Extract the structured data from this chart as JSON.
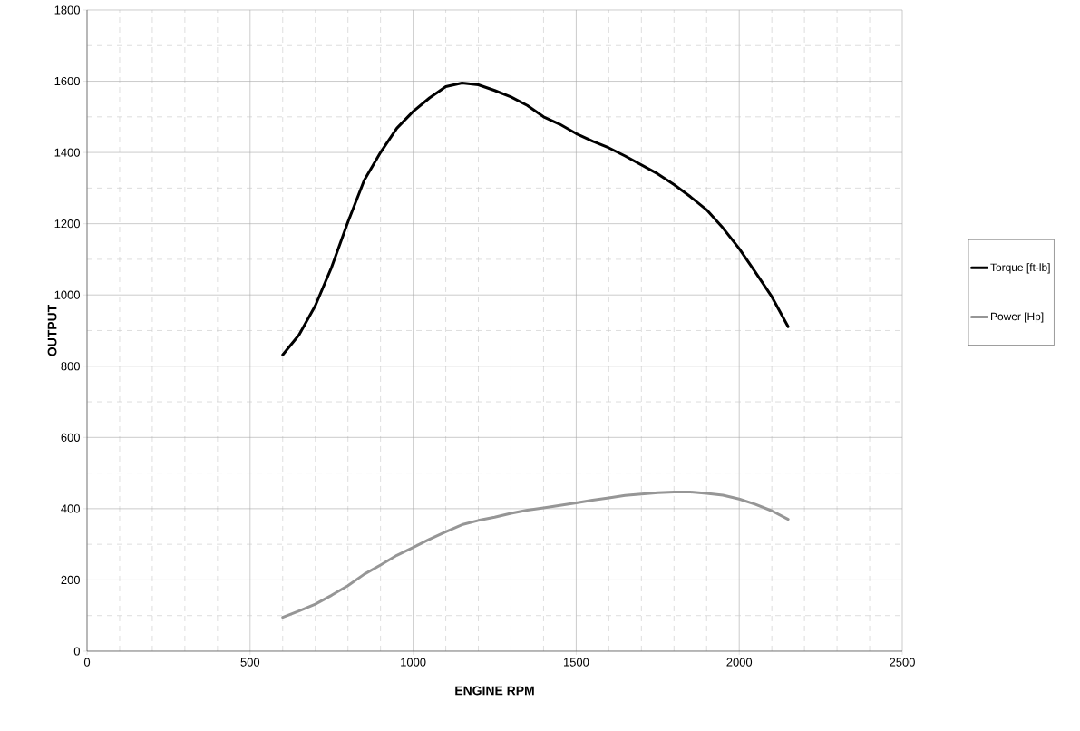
{
  "chart_data": {
    "type": "line",
    "xlabel": "ENGINE RPM",
    "ylabel": "OUTPUT",
    "x": [
      600,
      650,
      700,
      750,
      800,
      850,
      900,
      950,
      1000,
      1050,
      1100,
      1150,
      1200,
      1250,
      1300,
      1350,
      1400,
      1450,
      1500,
      1550,
      1600,
      1650,
      1700,
      1750,
      1800,
      1850,
      1900,
      1950,
      2000,
      2050,
      2100,
      2150
    ],
    "series": [
      {
        "name": "Torque [ft-lb]",
        "color": "#000000",
        "values": [
          832,
          888,
          970,
          1078,
          1205,
          1322,
          1400,
          1468,
          1515,
          1553,
          1585,
          1595,
          1590,
          1574,
          1556,
          1532,
          1500,
          1479,
          1453,
          1432,
          1413,
          1390,
          1365,
          1340,
          1310,
          1276,
          1239,
          1188,
          1130,
          1063,
          995,
          911
        ]
      },
      {
        "name": "Power [Hp]",
        "color": "#969696",
        "values": [
          95,
          113,
          132,
          157,
          184,
          216,
          242,
          269,
          291,
          314,
          335,
          355,
          367,
          376,
          387,
          396,
          402,
          409,
          416,
          424,
          430,
          437,
          441,
          445,
          447,
          447,
          443,
          438,
          427,
          412,
          394,
          370
        ]
      }
    ],
    "xlim": [
      0,
      2500
    ],
    "ylim": [
      0,
      1800
    ],
    "xticks": [
      0,
      500,
      1000,
      1500,
      2000,
      2500
    ],
    "yticks": [
      0,
      200,
      400,
      600,
      800,
      1000,
      1200,
      1400,
      1600,
      1800
    ],
    "grid": true,
    "legend": "right",
    "marker": "none",
    "line_style": "solid"
  }
}
